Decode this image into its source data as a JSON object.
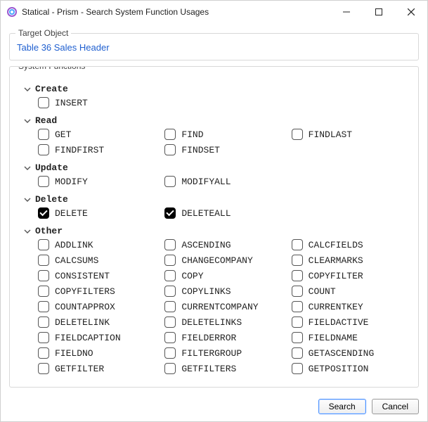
{
  "window": {
    "title": "Statical - Prism - Search System Function Usages"
  },
  "target": {
    "label": "Target Object",
    "link": "Table 36 Sales Header"
  },
  "sysfuncs": {
    "label": "System Functions",
    "categories": [
      {
        "name": "Create",
        "items": [
          {
            "label": "INSERT",
            "checked": false
          }
        ]
      },
      {
        "name": "Read",
        "items": [
          {
            "label": "GET",
            "checked": false
          },
          {
            "label": "FIND",
            "checked": false
          },
          {
            "label": "FINDLAST",
            "checked": false
          },
          {
            "label": "FINDFIRST",
            "checked": false
          },
          {
            "label": "FINDSET",
            "checked": false
          }
        ]
      },
      {
        "name": "Update",
        "items": [
          {
            "label": "MODIFY",
            "checked": false
          },
          {
            "label": "MODIFYALL",
            "checked": false
          }
        ]
      },
      {
        "name": "Delete",
        "items": [
          {
            "label": "DELETE",
            "checked": true
          },
          {
            "label": "DELETEALL",
            "checked": true
          }
        ]
      },
      {
        "name": "Other",
        "items": [
          {
            "label": "ADDLINK",
            "checked": false
          },
          {
            "label": "ASCENDING",
            "checked": false
          },
          {
            "label": "CALCFIELDS",
            "checked": false
          },
          {
            "label": "CALCSUMS",
            "checked": false
          },
          {
            "label": "CHANGECOMPANY",
            "checked": false
          },
          {
            "label": "CLEARMARKS",
            "checked": false
          },
          {
            "label": "CONSISTENT",
            "checked": false
          },
          {
            "label": "COPY",
            "checked": false
          },
          {
            "label": "COPYFILTER",
            "checked": false
          },
          {
            "label": "COPYFILTERS",
            "checked": false
          },
          {
            "label": "COPYLINKS",
            "checked": false
          },
          {
            "label": "COUNT",
            "checked": false
          },
          {
            "label": "COUNTAPPROX",
            "checked": false
          },
          {
            "label": "CURRENTCOMPANY",
            "checked": false
          },
          {
            "label": "CURRENTKEY",
            "checked": false
          },
          {
            "label": "DELETELINK",
            "checked": false
          },
          {
            "label": "DELETELINKS",
            "checked": false
          },
          {
            "label": "FIELDACTIVE",
            "checked": false
          },
          {
            "label": "FIELDCAPTION",
            "checked": false
          },
          {
            "label": "FIELDERROR",
            "checked": false
          },
          {
            "label": "FIELDNAME",
            "checked": false
          },
          {
            "label": "FIELDNO",
            "checked": false
          },
          {
            "label": "FILTERGROUP",
            "checked": false
          },
          {
            "label": "GETASCENDING",
            "checked": false
          },
          {
            "label": "GETFILTER",
            "checked": false
          },
          {
            "label": "GETFILTERS",
            "checked": false
          },
          {
            "label": "GETPOSITION",
            "checked": false
          }
        ]
      }
    ]
  },
  "footer": {
    "search": "Search",
    "cancel": "Cancel"
  },
  "colors": {
    "link": "#2060d0",
    "border": "#d8d8d8",
    "primary_button_border": "#4a90ff"
  }
}
